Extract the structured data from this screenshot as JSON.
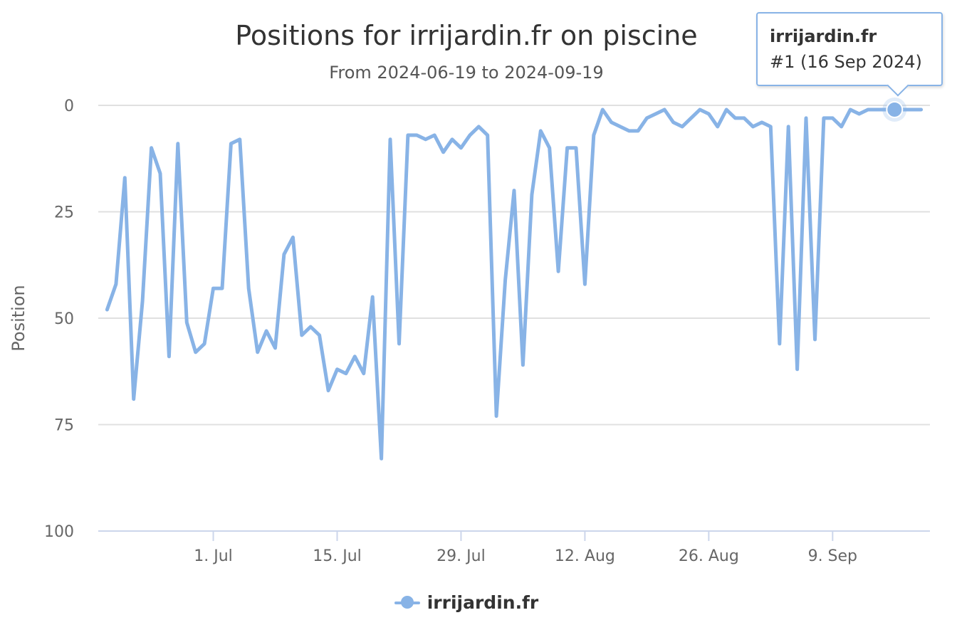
{
  "chart_data": {
    "type": "line",
    "title": "Positions for irrijardin.fr on piscine",
    "subtitle": "From 2024-06-19 to 2024-09-19",
    "ylabel": "Position",
    "xlabel": "",
    "ylim": [
      0,
      100
    ],
    "y_reversed": true,
    "y_ticks": [
      "0",
      "25",
      "50",
      "75",
      "100"
    ],
    "x_ticks": [
      {
        "label": "1. Jul",
        "date": "2024-07-01"
      },
      {
        "label": "15. Jul",
        "date": "2024-07-15"
      },
      {
        "label": "29. Jul",
        "date": "2024-07-29"
      },
      {
        "label": "12. Aug",
        "date": "2024-08-12"
      },
      {
        "label": "26. Aug",
        "date": "2024-08-26"
      },
      {
        "label": "9. Sep",
        "date": "2024-09-09"
      }
    ],
    "xlim": [
      "2024-06-18",
      "2024-09-20"
    ],
    "grid": true,
    "legend_position": "bottom-center",
    "series": [
      {
        "name": "irrijardin.fr",
        "color": "#88b3e6",
        "x": [
          "2024-06-19",
          "2024-06-20",
          "2024-06-21",
          "2024-06-22",
          "2024-06-23",
          "2024-06-24",
          "2024-06-25",
          "2024-06-26",
          "2024-06-27",
          "2024-06-28",
          "2024-06-29",
          "2024-06-30",
          "2024-07-01",
          "2024-07-02",
          "2024-07-03",
          "2024-07-04",
          "2024-07-05",
          "2024-07-06",
          "2024-07-07",
          "2024-07-08",
          "2024-07-09",
          "2024-07-10",
          "2024-07-11",
          "2024-07-12",
          "2024-07-13",
          "2024-07-14",
          "2024-07-15",
          "2024-07-16",
          "2024-07-17",
          "2024-07-18",
          "2024-07-19",
          "2024-07-20",
          "2024-07-21",
          "2024-07-22",
          "2024-07-23",
          "2024-07-24",
          "2024-07-25",
          "2024-07-26",
          "2024-07-27",
          "2024-07-28",
          "2024-07-29",
          "2024-07-30",
          "2024-07-31",
          "2024-08-01",
          "2024-08-02",
          "2024-08-03",
          "2024-08-04",
          "2024-08-05",
          "2024-08-06",
          "2024-08-07",
          "2024-08-08",
          "2024-08-09",
          "2024-08-10",
          "2024-08-11",
          "2024-08-12",
          "2024-08-13",
          "2024-08-14",
          "2024-08-15",
          "2024-08-16",
          "2024-08-17",
          "2024-08-18",
          "2024-08-19",
          "2024-08-20",
          "2024-08-21",
          "2024-08-22",
          "2024-08-23",
          "2024-08-24",
          "2024-08-25",
          "2024-08-26",
          "2024-08-27",
          "2024-08-28",
          "2024-08-29",
          "2024-08-30",
          "2024-08-31",
          "2024-09-01",
          "2024-09-02",
          "2024-09-03",
          "2024-09-04",
          "2024-09-05",
          "2024-09-06",
          "2024-09-07",
          "2024-09-08",
          "2024-09-09",
          "2024-09-10",
          "2024-09-11",
          "2024-09-12",
          "2024-09-13",
          "2024-09-14",
          "2024-09-15",
          "2024-09-16",
          "2024-09-17",
          "2024-09-18",
          "2024-09-19"
        ],
        "y": [
          48,
          42,
          17,
          69,
          46,
          10,
          16,
          59,
          9,
          51,
          58,
          56,
          43,
          43,
          9,
          8,
          43,
          58,
          53,
          57,
          35,
          31,
          54,
          52,
          54,
          67,
          62,
          63,
          59,
          63,
          45,
          83,
          8,
          56,
          7,
          7,
          8,
          7,
          11,
          8,
          10,
          7,
          5,
          7,
          73,
          41,
          20,
          61,
          21,
          6,
          10,
          39,
          10,
          10,
          42,
          7,
          1,
          4,
          5,
          6,
          6,
          3,
          2,
          1,
          4,
          5,
          3,
          1,
          2,
          5,
          1,
          3,
          3,
          5,
          4,
          5,
          56,
          5,
          62,
          3,
          55,
          3,
          3,
          5,
          1,
          2,
          1,
          1,
          1,
          1,
          1,
          1,
          1
        ]
      }
    ],
    "tooltip": {
      "series": "irrijardin.fr",
      "text": "#1 (16 Sep 2024)",
      "date": "2024-09-16",
      "value": 1
    }
  }
}
